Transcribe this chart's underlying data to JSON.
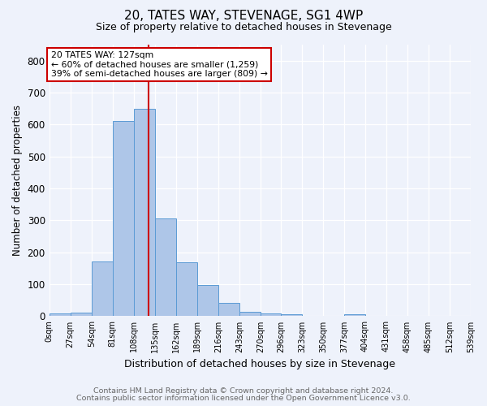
{
  "title1": "20, TATES WAY, STEVENAGE, SG1 4WP",
  "title2": "Size of property relative to detached houses in Stevenage",
  "xlabel": "Distribution of detached houses by size in Stevenage",
  "ylabel": "Number of detached properties",
  "bin_edges": [
    0,
    27,
    54,
    81,
    108,
    135,
    162,
    189,
    216,
    243,
    270,
    296,
    323,
    350,
    377,
    404,
    431,
    458,
    485,
    512,
    539
  ],
  "bin_counts": [
    8,
    12,
    172,
    610,
    650,
    305,
    170,
    98,
    42,
    15,
    8,
    5,
    2,
    0,
    6,
    0,
    0,
    0,
    0,
    0
  ],
  "bar_color": "#aec6e8",
  "bar_edge_color": "#5b9bd5",
  "property_size": 127,
  "vline_color": "#cc0000",
  "annotation_text": "20 TATES WAY: 127sqm\n← 60% of detached houses are smaller (1,259)\n39% of semi-detached houses are larger (809) →",
  "annotation_box_color": "#ffffff",
  "annotation_box_edge": "#cc0000",
  "ylim": [
    0,
    850
  ],
  "yticks": [
    0,
    100,
    200,
    300,
    400,
    500,
    600,
    700,
    800
  ],
  "tick_labels": [
    "0sqm",
    "27sqm",
    "54sqm",
    "81sqm",
    "108sqm",
    "135sqm",
    "162sqm",
    "189sqm",
    "216sqm",
    "243sqm",
    "270sqm",
    "296sqm",
    "323sqm",
    "350sqm",
    "377sqm",
    "404sqm",
    "431sqm",
    "458sqm",
    "485sqm",
    "512sqm",
    "539sqm"
  ],
  "footer1": "Contains HM Land Registry data © Crown copyright and database right 2024.",
  "footer2": "Contains public sector information licensed under the Open Government Licence v3.0.",
  "background_color": "#eef2fb"
}
